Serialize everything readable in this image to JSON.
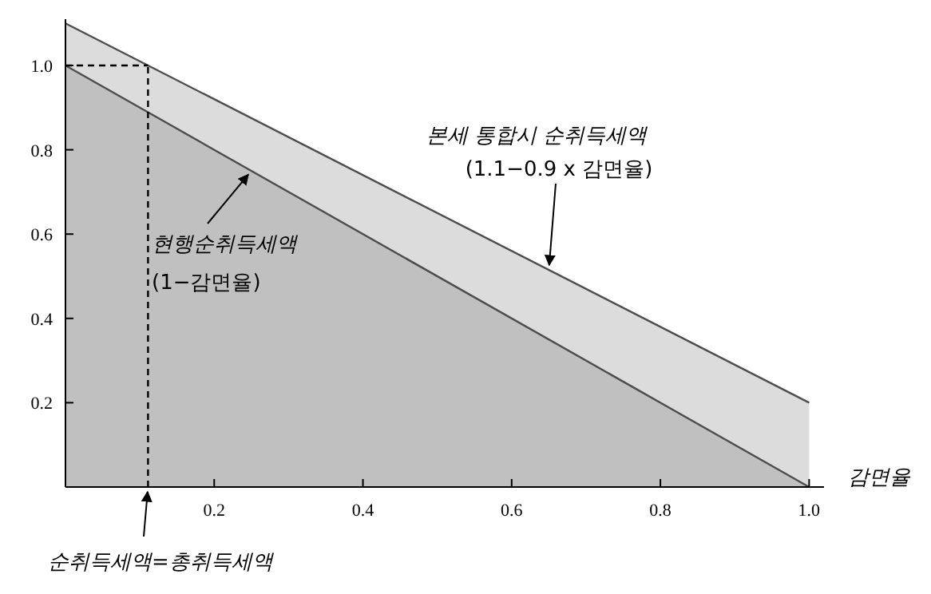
{
  "chart_data": {
    "type": "area",
    "xlabel": "감면율",
    "x": [
      0,
      1
    ],
    "series": [
      {
        "color": "#dcdcdc",
        "values": [
          1.1,
          0.2
        ]
      },
      {
        "color": "#c0c0c0",
        "values": [
          1,
          0
        ]
      }
    ],
    "ref_lines": [
      {
        "axis": "x",
        "value": 0.111,
        "color": "#000000",
        "line_style": "dashed"
      },
      {
        "axis": "y",
        "value": 1,
        "color": "#000000",
        "line_style": "dashed"
      }
    ],
    "xlim": [
      0,
      1.02
    ],
    "ylim": [
      0,
      1.11
    ],
    "xticks": [
      0.2,
      0.4,
      0.6,
      0.8,
      {
        "value": 1,
        "label": "1.0"
      }
    ],
    "yticks": [
      0.2,
      0.4,
      0.6,
      0.8,
      {
        "value": 1,
        "label": "1.0"
      }
    ],
    "grid": false,
    "annotations": [
      "본세 통합시 순취득세액",
      {
        "text": "(1.1−0.9 x 감면율)",
        "x": 0.65,
        "y": 0.515
      },
      {
        "text": "현행순취득세액",
        "x": 0.25,
        "y": 0.75
      },
      "(1−감면율)",
      {
        "text": "순취득세액=총취득세액",
        "x": 0.111,
        "y": 0
      }
    ]
  }
}
